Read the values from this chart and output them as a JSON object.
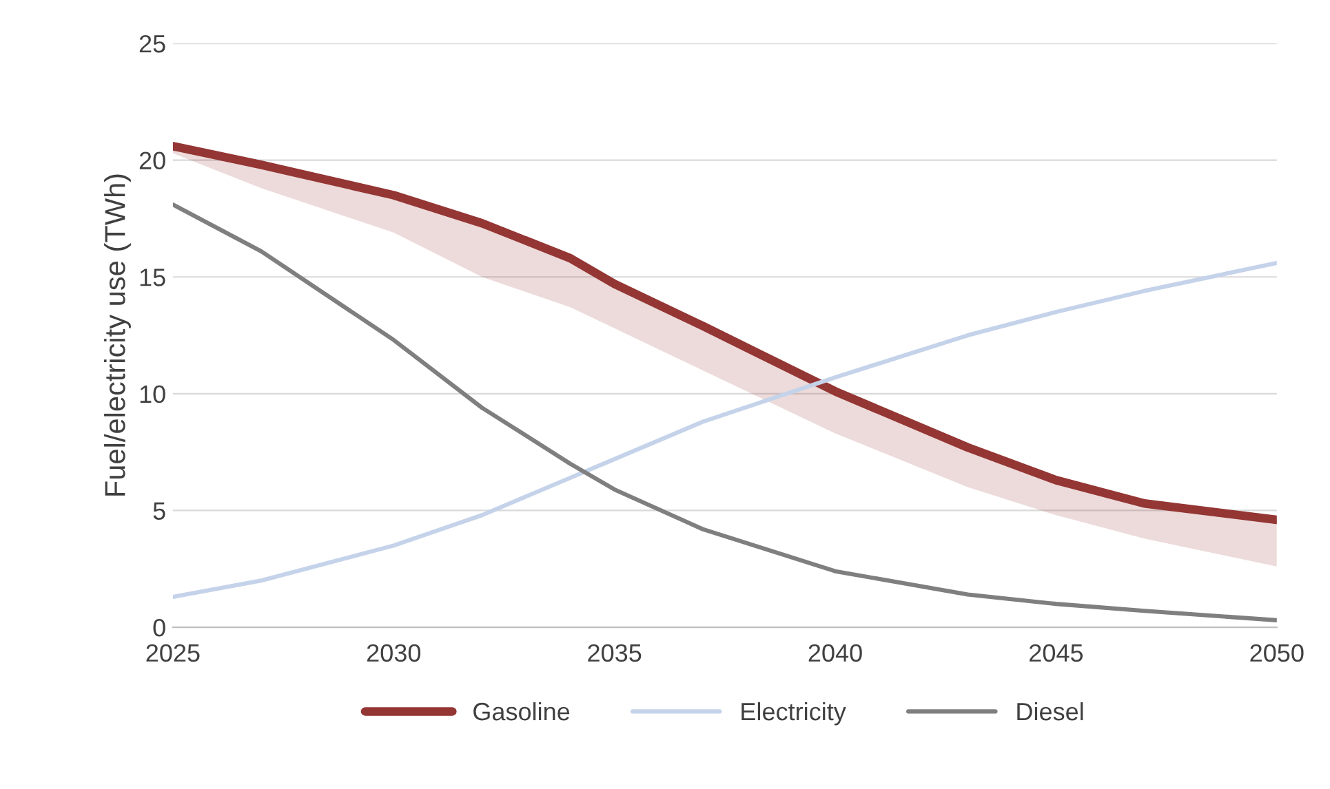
{
  "chart_data": {
    "type": "line",
    "ylabel": "Fuel/electricity use (TWh)",
    "x": [
      2025,
      2027,
      2030,
      2032,
      2034,
      2035,
      2037,
      2040,
      2043,
      2045,
      2047,
      2050
    ],
    "series": [
      {
        "name": "Gasoline",
        "color": "#943634",
        "values": [
          20.6,
          19.8,
          18.5,
          17.3,
          15.8,
          14.7,
          12.9,
          10.1,
          7.7,
          6.3,
          5.3,
          4.6
        ],
        "lower": [
          20.3,
          18.8,
          16.9,
          15.0,
          13.7,
          12.8,
          11.0,
          8.3,
          6.0,
          4.8,
          3.8,
          2.6
        ],
        "upper": [
          20.6,
          19.8,
          18.5,
          17.3,
          15.8,
          14.7,
          12.9,
          10.1,
          7.7,
          6.3,
          5.3,
          4.6
        ]
      },
      {
        "name": "Electricity",
        "color": "#c5d3ea",
        "values": [
          1.3,
          2.0,
          3.5,
          4.8,
          6.4,
          7.2,
          8.8,
          10.7,
          12.5,
          13.5,
          14.4,
          15.6
        ]
      },
      {
        "name": "Diesel",
        "color": "#7f7f7f",
        "values": [
          18.1,
          16.1,
          12.3,
          9.4,
          7.0,
          5.9,
          4.2,
          2.4,
          1.4,
          1.0,
          0.7,
          0.3
        ]
      }
    ],
    "xlim": [
      2025,
      2050
    ],
    "xticks": [
      2025,
      2030,
      2035,
      2040,
      2045,
      2050
    ],
    "ylim": [
      0,
      25
    ],
    "yticks": [
      0,
      5,
      10,
      15,
      20,
      25
    ],
    "grid": "y",
    "legend": "bottom",
    "marker": "none",
    "line_style": "solid"
  }
}
